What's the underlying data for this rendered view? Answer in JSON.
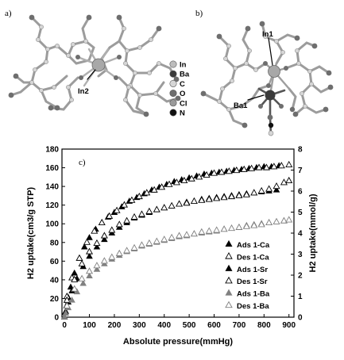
{
  "panels": {
    "a": {
      "label": "a)",
      "atom_label": "In2"
    },
    "b": {
      "label": "b)",
      "atom_labels": [
        "In1",
        "Ba1"
      ]
    },
    "c": {
      "label": "c)"
    }
  },
  "atom_legend": [
    {
      "element": "In",
      "color": "#bdbdbd"
    },
    {
      "element": "Ba",
      "color": "#3a3a3a"
    },
    {
      "element": "C",
      "color": "#d6d6d6"
    },
    {
      "element": "O",
      "color": "#6e6e6e"
    },
    {
      "element": "Cl",
      "color": "#9a9a9a"
    },
    {
      "element": "N",
      "color": "#111111"
    }
  ],
  "colors": {
    "series_black": "#000000",
    "series_gray": "#808080",
    "ligand_bond": "#9c9c9c",
    "metal": "#a8a8a8"
  },
  "chart_data": {
    "type": "scatter",
    "xlabel": "Absolute pressure(mmHg)",
    "ylabel": "H2 uptake(cm3/g STP)",
    "ylabel_right": "H2 uptake(mmol/g)",
    "xlim": [
      -10,
      920
    ],
    "ylim": [
      0,
      180
    ],
    "ylim_right": [
      0,
      8
    ],
    "xticks": [
      0,
      100,
      200,
      300,
      400,
      500,
      600,
      700,
      800,
      900
    ],
    "yticks": [
      0,
      20,
      40,
      60,
      80,
      100,
      120,
      140,
      160,
      180
    ],
    "yticks_right": [
      0,
      1,
      2,
      3,
      4,
      5,
      6,
      7,
      8
    ],
    "legend_position": "right",
    "series": [
      {
        "name": "Ads 1-Ca",
        "marker": "filled",
        "color": "#000000",
        "x": [
          0,
          3,
          8,
          15,
          25,
          40,
          60,
          80,
          100,
          125,
          150,
          175,
          200,
          230,
          260,
          290,
          320,
          350,
          380,
          410,
          440,
          470,
          500,
          530,
          560,
          590,
          620,
          650,
          680,
          710,
          740,
          770,
          800,
          830,
          860
        ],
        "y": [
          0,
          5,
          12,
          21,
          32,
          47,
          63,
          75,
          85,
          94,
          101,
          107,
          112,
          118,
          124,
          128,
          132,
          136,
          139,
          142,
          145,
          147,
          149,
          151,
          153,
          154,
          155,
          156,
          157,
          158,
          159,
          160,
          161,
          161,
          162
        ]
      },
      {
        "name": "Des 1-Ca",
        "marker": "open",
        "color": "#000000",
        "x": [
          10,
          30,
          60,
          90,
          120,
          150,
          180,
          210,
          240,
          270,
          300,
          330,
          360,
          390,
          420,
          450,
          480,
          510,
          540,
          570,
          600,
          630,
          660,
          690,
          720,
          750,
          780,
          810,
          840,
          870,
          900
        ],
        "y": [
          22,
          42,
          63,
          80,
          92,
          101,
          108,
          114,
          120,
          125,
          129,
          133,
          136,
          139,
          142,
          144,
          146,
          148,
          150,
          152,
          154,
          155,
          156,
          157,
          158,
          159,
          160,
          160,
          161,
          162,
          163
        ]
      },
      {
        "name": "Ads 1-Sr",
        "marker": "filled",
        "color": "#000000",
        "x": [
          0,
          5,
          15,
          30,
          50,
          75,
          100,
          130,
          160,
          190,
          220,
          250,
          280,
          310,
          340,
          370,
          400,
          430,
          460,
          490,
          520,
          550,
          580,
          610,
          640,
          670,
          700,
          730,
          760,
          790,
          820,
          850
        ],
        "y": [
          0,
          6,
          16,
          28,
          41,
          54,
          65,
          75,
          83,
          90,
          96,
          101,
          106,
          109,
          112,
          115,
          117,
          119,
          121,
          123,
          124,
          126,
          127,
          128,
          129,
          130,
          131,
          132,
          133,
          134,
          135,
          136
        ]
      },
      {
        "name": "Des 1-Sr",
        "marker": "open",
        "color": "#000000",
        "x": [
          10,
          40,
          70,
          100,
          130,
          160,
          190,
          220,
          250,
          280,
          310,
          340,
          370,
          400,
          430,
          460,
          490,
          520,
          550,
          580,
          610,
          640,
          670,
          700,
          730,
          760,
          790,
          820,
          850,
          880,
          900
        ],
        "y": [
          18,
          40,
          57,
          70,
          79,
          87,
          93,
          99,
          103,
          107,
          110,
          113,
          115,
          117,
          119,
          121,
          122,
          124,
          125,
          126,
          127,
          128,
          129,
          130,
          131,
          133,
          135,
          137,
          140,
          144,
          146
        ]
      },
      {
        "name": "Ads 1-Ba",
        "marker": "filled",
        "color": "#808080",
        "x": [
          0,
          5,
          15,
          30,
          50,
          75,
          100,
          130,
          160,
          190,
          220,
          250,
          280,
          310,
          340,
          370,
          400,
          430,
          460,
          490,
          520,
          550,
          580,
          610,
          640,
          670,
          700,
          730,
          760,
          790,
          820,
          850,
          880
        ],
        "y": [
          0,
          4,
          10,
          18,
          27,
          36,
          44,
          51,
          57,
          62,
          66,
          70,
          73,
          76,
          78,
          80,
          82,
          84,
          86,
          87,
          89,
          90,
          91,
          92,
          94,
          95,
          96,
          98,
          99,
          100,
          101,
          102,
          103
        ]
      },
      {
        "name": "Des 1-Ba",
        "marker": "open",
        "color": "#808080",
        "x": [
          10,
          40,
          70,
          100,
          130,
          160,
          190,
          220,
          250,
          280,
          310,
          340,
          370,
          400,
          430,
          460,
          490,
          520,
          550,
          580,
          610,
          640,
          670,
          700,
          730,
          760,
          790,
          820,
          850,
          880,
          900
        ],
        "y": [
          12,
          30,
          41,
          49,
          55,
          60,
          64,
          68,
          71,
          74,
          77,
          79,
          81,
          83,
          85,
          87,
          88,
          89,
          91,
          92,
          93,
          94,
          95,
          96,
          97,
          98,
          99,
          101,
          102,
          103,
          104
        ]
      }
    ]
  }
}
